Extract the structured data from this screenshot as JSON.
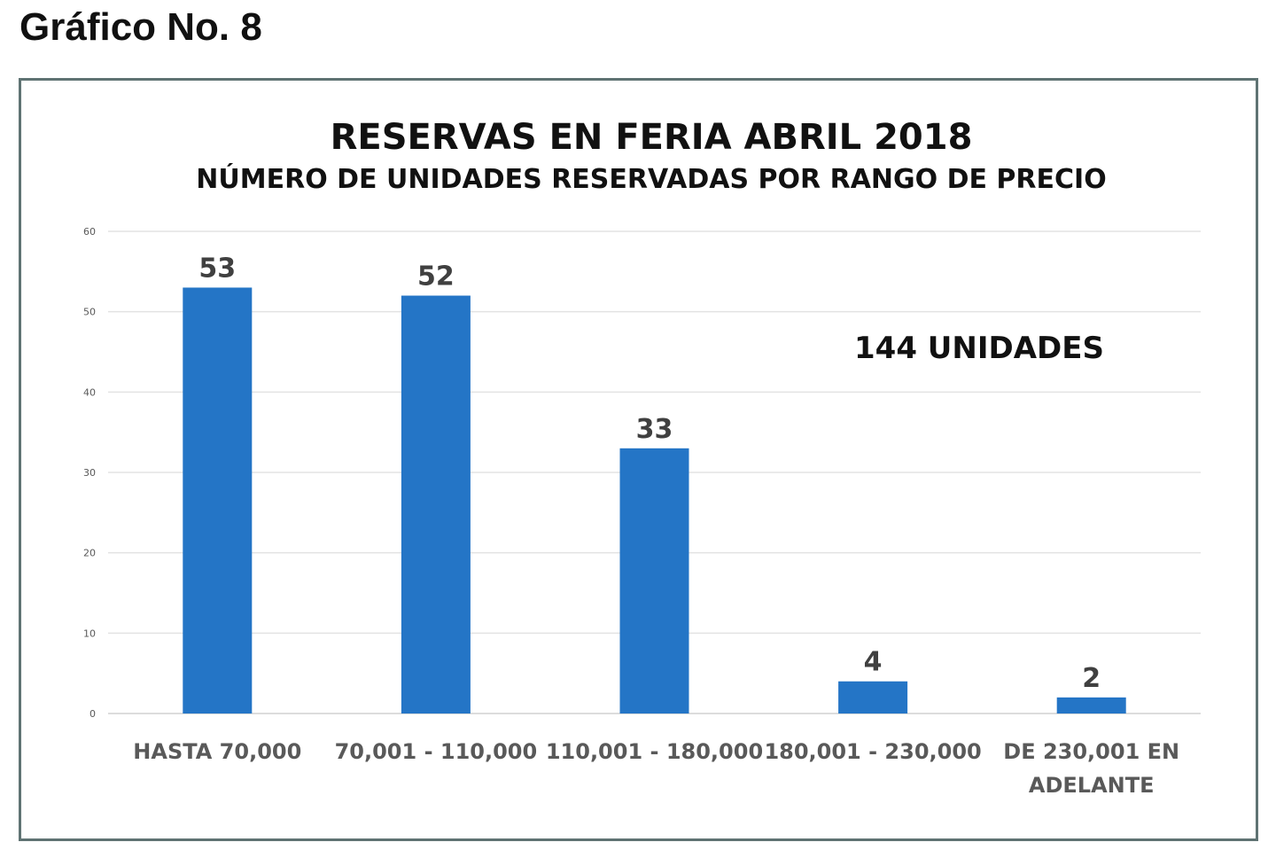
{
  "heading": "Gráfico No. 8",
  "chart_data": {
    "type": "bar",
    "title": "RESERVAS EN FERIA ABRIL 2018",
    "subtitle": "NÚMERO DE UNIDADES RESERVADAS POR RANGO DE PRECIO",
    "annotation": "144 UNIDADES",
    "categories": [
      [
        "HASTA 70,000"
      ],
      [
        "70,001 - 110,000"
      ],
      [
        "110,001 - 180,000"
      ],
      [
        "180,001 - 230,000"
      ],
      [
        "DE 230,001 EN",
        "ADELANTE"
      ]
    ],
    "values": [
      53,
      52,
      33,
      4,
      2
    ],
    "yticks": [
      0,
      10,
      20,
      30,
      40,
      50,
      60
    ],
    "ylim": [
      0,
      60
    ],
    "xlabel": "",
    "ylabel": "",
    "grid": true,
    "bar_color": "#2475c6"
  }
}
